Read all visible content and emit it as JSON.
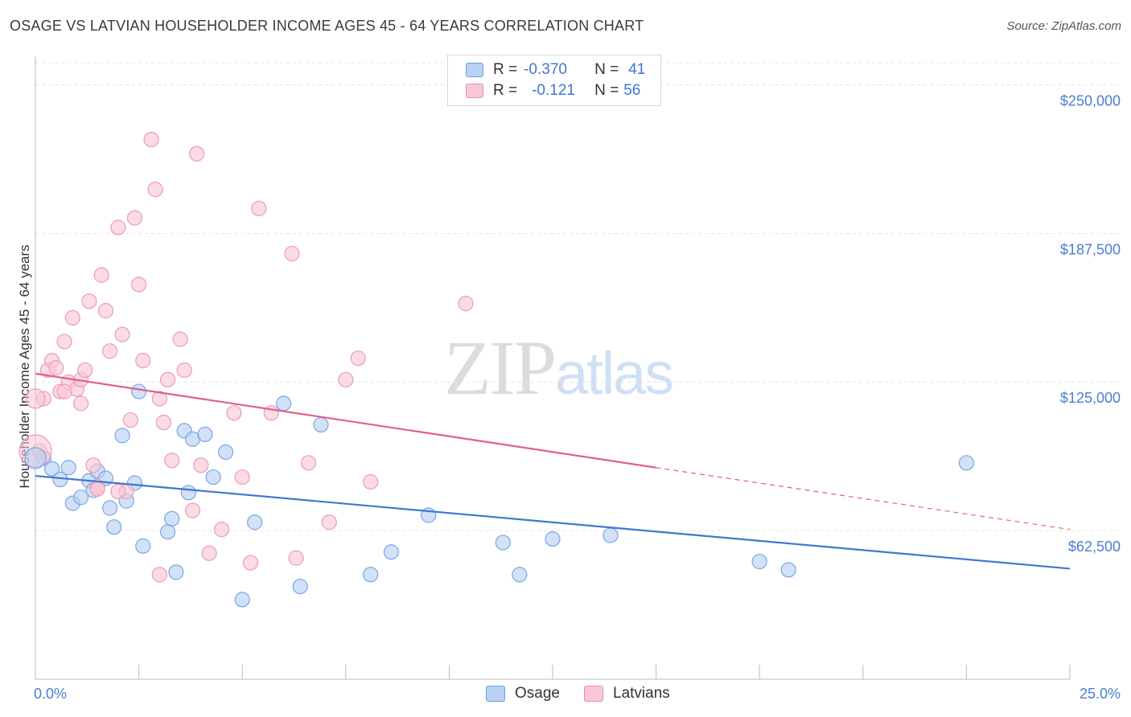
{
  "title": "OSAGE VS LATVIAN HOUSEHOLDER INCOME AGES 45 - 64 YEARS CORRELATION CHART",
  "source": "Source: ZipAtlas.com",
  "watermark": {
    "zip": "ZIP",
    "atlas": "atlas"
  },
  "legend": {
    "osage": {
      "r_label": "R =",
      "r_value": "-0.370",
      "n_label": "N =",
      "n_value": "41"
    },
    "latvians": {
      "r_label": "R =",
      "r_value": "-0.121",
      "n_label": "N =",
      "n_value": "56"
    }
  },
  "bottom_legend": {
    "osage": "Osage",
    "latvians": "Latvians"
  },
  "colors": {
    "osage": "#3e78cf",
    "latvians": "#e0608d",
    "osage_fill": "#b9d1f3",
    "latvians_fill": "#f9c7d6"
  },
  "chart_data": {
    "type": "scatter",
    "title": "OSAGE VS LATVIAN HOUSEHOLDER INCOME AGES 45 - 64 YEARS CORRELATION CHART",
    "xlabel": "",
    "ylabel": "Householder Income Ages 45 - 64 years",
    "xlim": [
      0,
      25
    ],
    "ylim": [
      0,
      262000
    ],
    "x_tick_labels": [
      "0.0%",
      "25.0%"
    ],
    "y_ticks": [
      62500,
      125000,
      187500,
      250000
    ],
    "y_tick_labels": [
      "$62,500",
      "$125,000",
      "$187,500",
      "$250,000"
    ],
    "grid": true,
    "series": [
      {
        "name": "Osage",
        "points": [
          [
            0.2,
            93000
          ],
          [
            0.4,
            88500
          ],
          [
            0.6,
            84000
          ],
          [
            0.8,
            89000
          ],
          [
            0.9,
            74000
          ],
          [
            1.1,
            76500
          ],
          [
            1.3,
            83500
          ],
          [
            1.4,
            79500
          ],
          [
            1.5,
            87500
          ],
          [
            1.7,
            84500
          ],
          [
            1.8,
            72000
          ],
          [
            1.9,
            64000
          ],
          [
            2.1,
            102500
          ],
          [
            2.2,
            75000
          ],
          [
            2.4,
            82500
          ],
          [
            2.5,
            121000
          ],
          [
            2.6,
            56000
          ],
          [
            3.2,
            62000
          ],
          [
            3.3,
            67500
          ],
          [
            3.4,
            45000
          ],
          [
            3.6,
            104500
          ],
          [
            3.7,
            78500
          ],
          [
            3.8,
            101000
          ],
          [
            4.1,
            103000
          ],
          [
            4.3,
            85000
          ],
          [
            4.6,
            95500
          ],
          [
            5.0,
            33500
          ],
          [
            5.3,
            66000
          ],
          [
            6.0,
            116000
          ],
          [
            6.4,
            39000
          ],
          [
            6.9,
            107000
          ],
          [
            8.1,
            44000
          ],
          [
            8.6,
            53500
          ],
          [
            9.5,
            69000
          ],
          [
            11.3,
            57500
          ],
          [
            11.7,
            44000
          ],
          [
            12.5,
            59000
          ],
          [
            13.9,
            60500
          ],
          [
            17.5,
            49500
          ],
          [
            18.2,
            46000
          ],
          [
            22.5,
            91000
          ]
        ]
      },
      {
        "name": "Latvians",
        "points": [
          [
            0.1,
            96000
          ],
          [
            0.2,
            118000
          ],
          [
            0.3,
            130000
          ],
          [
            0.4,
            134000
          ],
          [
            0.5,
            131000
          ],
          [
            0.6,
            121000
          ],
          [
            0.7,
            142000
          ],
          [
            0.8,
            125000
          ],
          [
            0.9,
            152000
          ],
          [
            1.0,
            122000
          ],
          [
            1.1,
            126000
          ],
          [
            1.2,
            130000
          ],
          [
            1.3,
            159000
          ],
          [
            1.4,
            90000
          ],
          [
            1.5,
            81000
          ],
          [
            1.6,
            170000
          ],
          [
            1.7,
            155000
          ],
          [
            1.8,
            138000
          ],
          [
            2.0,
            190000
          ],
          [
            2.1,
            145000
          ],
          [
            2.3,
            109000
          ],
          [
            2.4,
            194000
          ],
          [
            2.5,
            166000
          ],
          [
            2.6,
            134000
          ],
          [
            2.8,
            227000
          ],
          [
            2.9,
            206000
          ],
          [
            3.0,
            118000
          ],
          [
            3.1,
            108000
          ],
          [
            3.2,
            126000
          ],
          [
            3.3,
            92000
          ],
          [
            3.5,
            143000
          ],
          [
            3.6,
            130000
          ],
          [
            3.8,
            71000
          ],
          [
            3.9,
            221000
          ],
          [
            4.0,
            90000
          ],
          [
            4.2,
            53000
          ],
          [
            4.5,
            63000
          ],
          [
            4.8,
            112000
          ],
          [
            5.0,
            85000
          ],
          [
            5.2,
            49000
          ],
          [
            5.4,
            198000
          ],
          [
            5.7,
            112000
          ],
          [
            6.2,
            179000
          ],
          [
            6.3,
            51000
          ],
          [
            6.6,
            91000
          ],
          [
            7.1,
            66000
          ],
          [
            7.5,
            126000
          ],
          [
            7.8,
            135000
          ],
          [
            8.1,
            83000
          ],
          [
            10.4,
            158000
          ],
          [
            1.1,
            116000
          ],
          [
            0.7,
            121000
          ],
          [
            1.5,
            80000
          ],
          [
            2.2,
            79000
          ],
          [
            3.0,
            44000
          ],
          [
            2.0,
            79000
          ]
        ]
      }
    ],
    "trend_lines": [
      {
        "series": "Osage",
        "x": [
          0,
          25
        ],
        "y": [
          85500,
          46500
        ]
      },
      {
        "series": "Latvians",
        "x": [
          0,
          15
        ],
        "y": [
          128500,
          89000
        ],
        "dashed_extension_to": [
          25,
          63000
        ]
      }
    ]
  }
}
